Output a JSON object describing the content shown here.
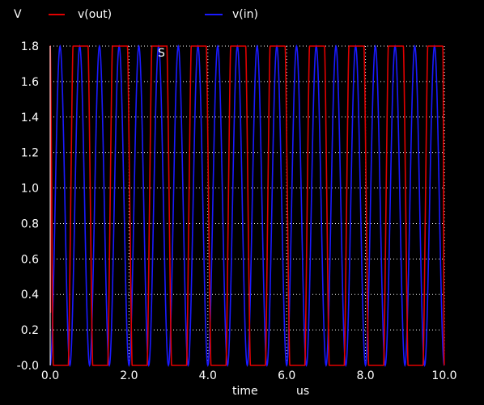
{
  "chart_data": {
    "type": "line",
    "title": "",
    "ylabel": "V",
    "xlabel": "time",
    "xunit": "us",
    "annotation": "S",
    "xlim": [
      0,
      10
    ],
    "ylim": [
      0,
      1.8
    ],
    "xticks": [
      "0.0",
      "2.0",
      "4.0",
      "6.0",
      "8.0",
      "10.0"
    ],
    "yticks": [
      "-0.0",
      "0.2",
      "0.4",
      "0.6",
      "0.8",
      "1.0",
      "1.2",
      "1.4",
      "1.6",
      "1.8"
    ],
    "grid": true,
    "legend_position": "top",
    "series": [
      {
        "name": "v(out)",
        "color": "#e00000",
        "shape": "clipped-square",
        "initial_value": 0.3,
        "rising_edges_x": [
          0.52,
          1.52,
          2.52,
          3.52,
          4.52,
          5.52,
          6.52,
          7.52,
          8.52,
          9.52
        ],
        "falling_edges_x": [
          0.02,
          1.02,
          2.02,
          3.02,
          4.02,
          5.02,
          6.02,
          7.02,
          8.02,
          9.02,
          10.02
        ],
        "low": 0.0,
        "high": 1.8
      },
      {
        "name": "v(in)",
        "color": "#1a1aff",
        "shape": "sine",
        "offset": 0.9,
        "amplitude": 0.9,
        "period_us": 0.5,
        "peaks_x": [
          0.25,
          0.75,
          1.25,
          1.75,
          2.25,
          2.75,
          3.25,
          3.75,
          4.25,
          4.75,
          5.25,
          5.75,
          6.25,
          6.75,
          7.25,
          7.75,
          8.25,
          8.75,
          9.25,
          9.75
        ]
      }
    ]
  }
}
